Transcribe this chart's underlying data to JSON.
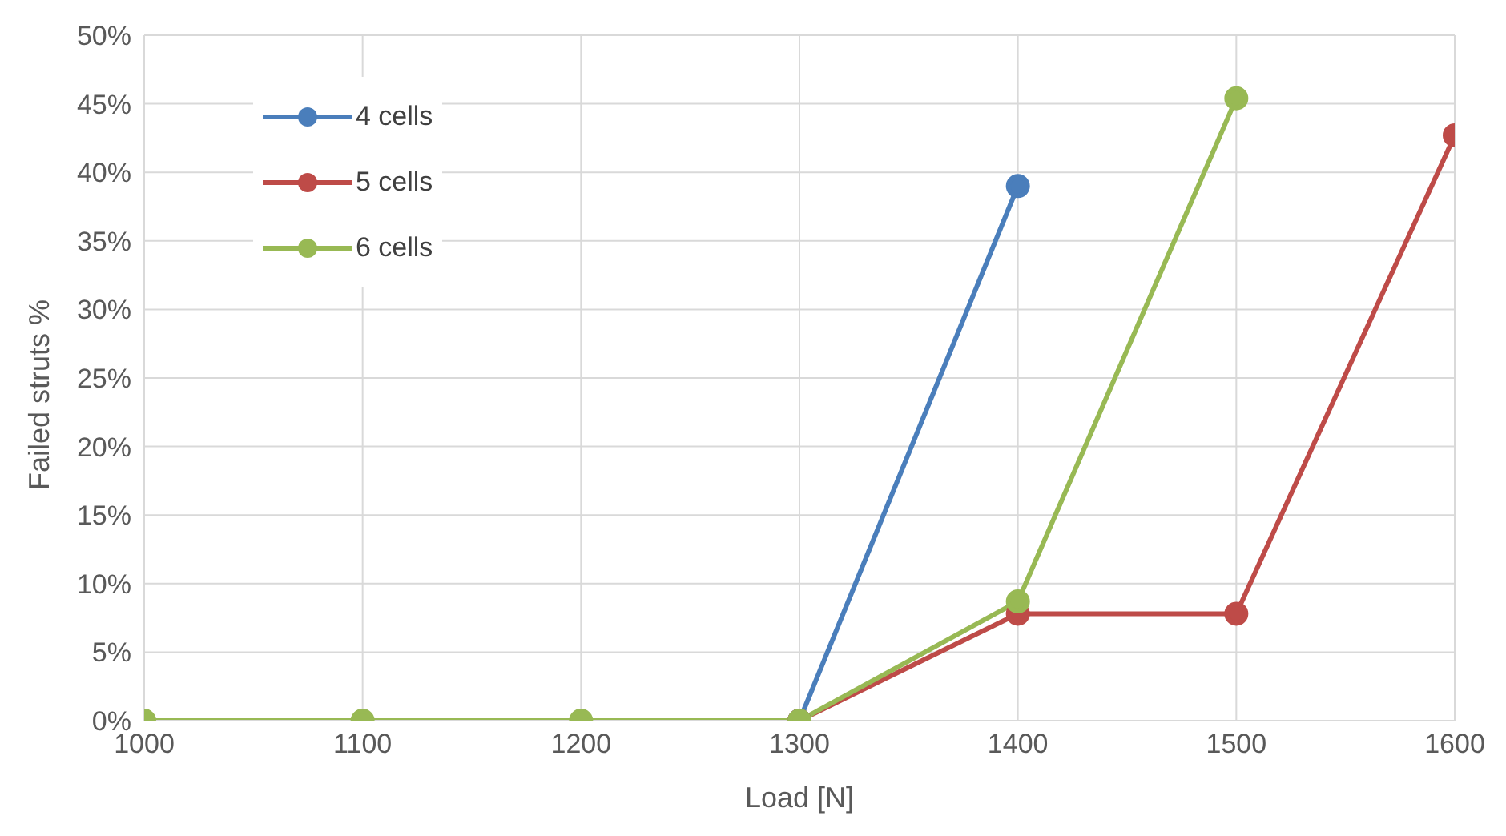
{
  "chart_data": {
    "type": "line",
    "xlabel": "Load [N]",
    "ylabel": "Failed struts %",
    "x": [
      1000,
      1100,
      1200,
      1300,
      1400,
      1500,
      1600
    ],
    "series": [
      {
        "name": "4 cells",
        "color": "#4a7ebb",
        "values": [
          null,
          null,
          null,
          0,
          39.0,
          null,
          null
        ]
      },
      {
        "name": "5 cells",
        "color": "#be4b48",
        "values": [
          null,
          null,
          null,
          0,
          7.8,
          7.8,
          42.7
        ]
      },
      {
        "name": "6 cells",
        "color": "#98b954",
        "values": [
          0,
          0,
          0,
          0,
          8.7,
          45.4,
          null
        ]
      }
    ],
    "xlim": [
      1000,
      1600
    ],
    "xticks": [
      1000,
      1100,
      1200,
      1300,
      1400,
      1500,
      1600
    ],
    "ylim": [
      0,
      50
    ],
    "yticks": [
      {
        "value": 0,
        "label": "0%"
      },
      {
        "value": 5,
        "label": "5%"
      },
      {
        "value": 10,
        "label": "10%"
      },
      {
        "value": 15,
        "label": "15%"
      },
      {
        "value": 20,
        "label": "20%"
      },
      {
        "value": 25,
        "label": "25%"
      },
      {
        "value": 30,
        "label": "30%"
      },
      {
        "value": 35,
        "label": "35%"
      },
      {
        "value": 40,
        "label": "40%"
      },
      {
        "value": 45,
        "label": "45%"
      },
      {
        "value": 50,
        "label": "50%"
      }
    ],
    "grid": true,
    "legend": "top left",
    "marker": "circle",
    "line_style": "solid"
  }
}
